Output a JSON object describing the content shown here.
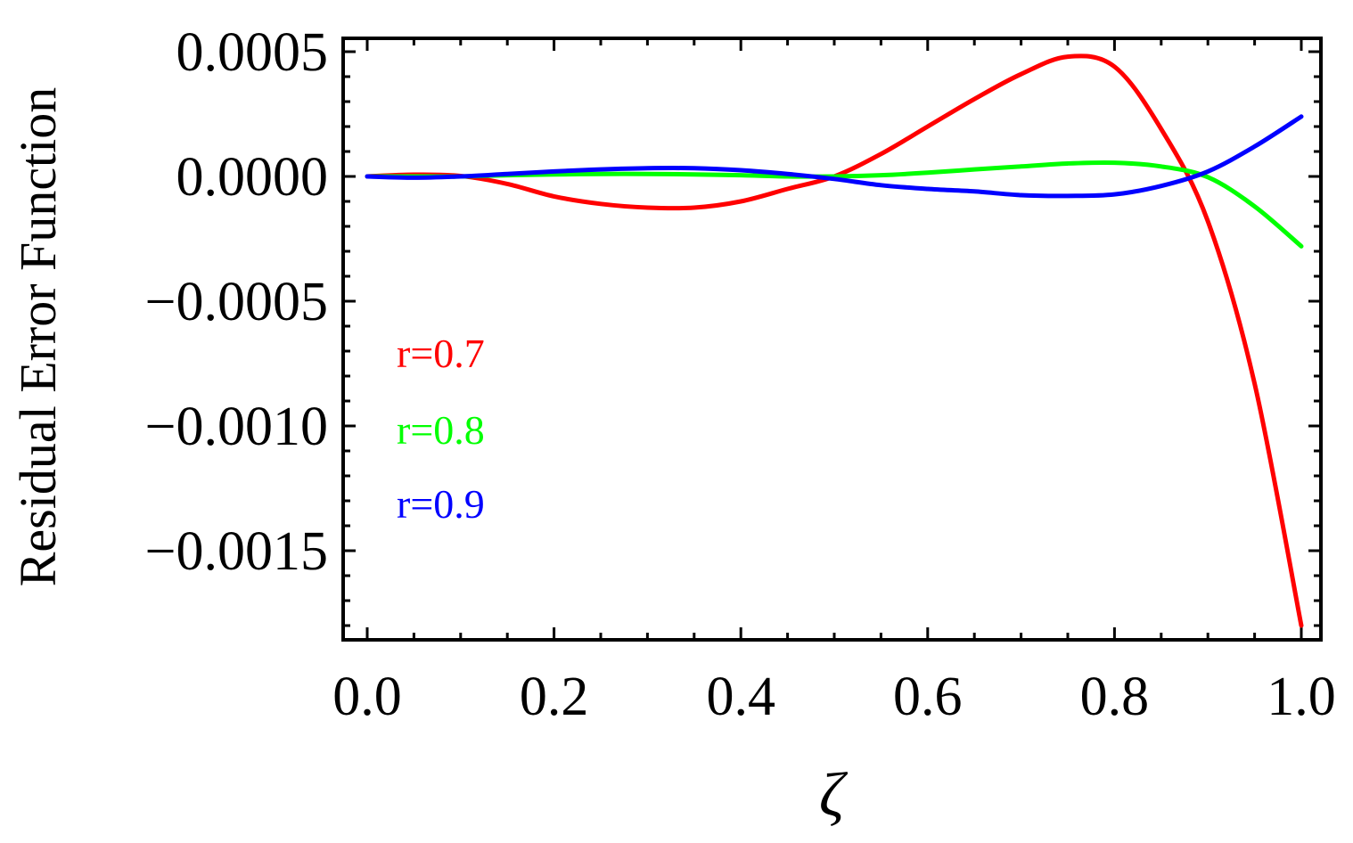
{
  "chart_data": {
    "type": "line",
    "title": "",
    "xlabel": "ζ",
    "ylabel": "Residual Error Function",
    "xlim": [
      0.0,
      1.0
    ],
    "ylim": [
      -0.00186,
      0.00055
    ],
    "x_ticks": [
      0.0,
      0.2,
      0.4,
      0.6,
      0.8,
      1.0
    ],
    "x_tick_labels": [
      "0.0",
      "0.2",
      "0.4",
      "0.6",
      "0.8",
      "1.0"
    ],
    "y_ticks": [
      0.0005,
      0.0,
      -0.0005,
      -0.001,
      -0.0015
    ],
    "y_tick_labels": [
      "0.0005",
      "0.0000",
      "−0.0005",
      "−0.0010",
      "−0.0015"
    ],
    "grid": false,
    "legend_placement": "left",
    "x": [
      0.0,
      0.05,
      0.1,
      0.15,
      0.2,
      0.25,
      0.3,
      0.35,
      0.4,
      0.45,
      0.5,
      0.55,
      0.6,
      0.65,
      0.7,
      0.75,
      0.8,
      0.85,
      0.9,
      0.95,
      1.0
    ],
    "series": [
      {
        "name": "r=0.7",
        "color": "#ff0000",
        "values": [
          0.0,
          7e-06,
          2e-06,
          -3e-05,
          -8e-05,
          -0.00011,
          -0.000125,
          -0.000125,
          -0.0001,
          -5e-05,
          0.0,
          9e-05,
          0.0002,
          0.00031,
          0.00041,
          0.00048,
          0.00044,
          0.00019,
          -0.00018,
          -0.00083,
          -0.0018
        ]
      },
      {
        "name": "r=0.8",
        "color": "#00ff00",
        "values": [
          0.0,
          0.0,
          0.0,
          5e-06,
          8e-06,
          1e-05,
          1e-05,
          8e-06,
          5e-06,
          0.0,
          0.0,
          5e-06,
          1.5e-05,
          2.8e-05,
          4e-05,
          5.2e-05,
          5.5e-05,
          4e-05,
          -3e-06,
          -0.00012,
          -0.00028
        ]
      },
      {
        "name": "r=0.9",
        "color": "#0000ff",
        "values": [
          0.0,
          -5e-06,
          0.0,
          1e-05,
          2e-05,
          2.8e-05,
          3.3e-05,
          3.3e-05,
          2.5e-05,
          1e-05,
          -1e-05,
          -3.5e-05,
          -5e-05,
          -6e-05,
          -7.5e-05,
          -7.8e-05,
          -7.2e-05,
          -3.8e-05,
          2e-05,
          0.00012,
          0.00024
        ]
      }
    ]
  }
}
